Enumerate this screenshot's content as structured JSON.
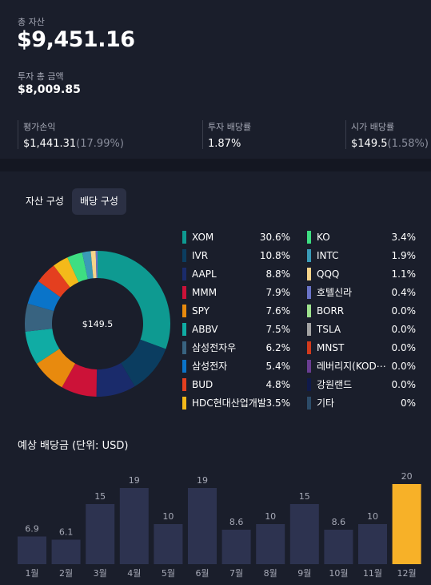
{
  "summary": {
    "total_assets_label": "총 자산",
    "total_assets": "$9,451.16",
    "total_invested_label": "투자 총 금액",
    "total_invested": "$8,009.85",
    "stats": [
      {
        "label": "평가손익",
        "value": "$1,441.31",
        "sub": "(17.99%)"
      },
      {
        "label": "투자 배당률",
        "value": "1.87%",
        "sub": ""
      },
      {
        "label": "시가 배당률",
        "value": "$149.5",
        "sub": "(1.58%)"
      }
    ]
  },
  "tabs": [
    {
      "label": "자산 구성",
      "active": false
    },
    {
      "label": "배당 구성",
      "active": true
    }
  ],
  "donut": {
    "center_label": "$149.5",
    "slices": [
      {
        "name": "XOM",
        "value": 30.6,
        "label": "30.6%",
        "color": "#0e9a91"
      },
      {
        "name": "IVR",
        "value": 10.8,
        "label": "10.8%",
        "color": "#0b3d60"
      },
      {
        "name": "AAPL",
        "value": 8.8,
        "label": "8.8%",
        "color": "#1a2b6b"
      },
      {
        "name": "MMM",
        "value": 7.9,
        "label": "7.9%",
        "color": "#cc1238"
      },
      {
        "name": "SPY",
        "value": 7.6,
        "label": "7.6%",
        "color": "#e88a0e"
      },
      {
        "name": "ABBV",
        "value": 7.5,
        "label": "7.5%",
        "color": "#10aca4"
      },
      {
        "name": "삼성전자우",
        "value": 6.2,
        "label": "6.2%",
        "color": "#386380"
      },
      {
        "name": "삼성전자",
        "value": 5.4,
        "label": "5.4%",
        "color": "#0a74c9"
      },
      {
        "name": "BUD",
        "value": 4.8,
        "label": "4.8%",
        "color": "#e43f1f"
      },
      {
        "name": "HDC현대산업개발",
        "value": 3.5,
        "label": "3.5%",
        "color": "#f4b91a"
      },
      {
        "name": "KO",
        "value": 3.4,
        "label": "3.4%",
        "color": "#3ede82"
      },
      {
        "name": "INTC",
        "value": 1.9,
        "label": "1.9%",
        "color": "#3a9bb7"
      },
      {
        "name": "QQQ",
        "value": 1.1,
        "label": "1.1%",
        "color": "#f5d48a"
      },
      {
        "name": "호텔신라",
        "value": 0.4,
        "label": "0.4%",
        "color": "#6a74c8"
      },
      {
        "name": "BORR",
        "value": 0.0,
        "label": "0.0%",
        "color": "#9ee28e"
      },
      {
        "name": "TSLA",
        "value": 0.0,
        "label": "0.0%",
        "color": "#a3a3a3"
      },
      {
        "name": "MNST",
        "value": 0.0,
        "label": "0.0%",
        "color": "#d23a1c"
      },
      {
        "name": "레버리지(KOD⋯",
        "value": 0.0,
        "label": "0.0%",
        "color": "#6a3d92"
      },
      {
        "name": "강원랜드",
        "value": 0.0,
        "label": "0.0%",
        "color": "#101a4a"
      },
      {
        "name": "기타",
        "value": 0,
        "label": "0%",
        "color": "#2c4b68"
      }
    ]
  },
  "chart_data": {
    "type": "bar",
    "title": "예상 배당금 (단위: USD)",
    "categories": [
      "1월",
      "2월",
      "3월",
      "4월",
      "5월",
      "6월",
      "7월",
      "8월",
      "9월",
      "10월",
      "11월",
      "12월"
    ],
    "values": [
      6.9,
      6.1,
      15,
      19,
      10,
      19,
      8.6,
      10,
      15,
      8.6,
      10,
      20
    ],
    "value_labels": [
      "6.9",
      "6.1",
      "15",
      "19",
      "10",
      "19",
      "8.6",
      "10",
      "15",
      "8.6",
      "10",
      "20"
    ],
    "highlight_index": 11,
    "bar_color": "#2d3350",
    "highlight_color": "#f7b128",
    "ylim": [
      0,
      20
    ],
    "grid": false
  }
}
